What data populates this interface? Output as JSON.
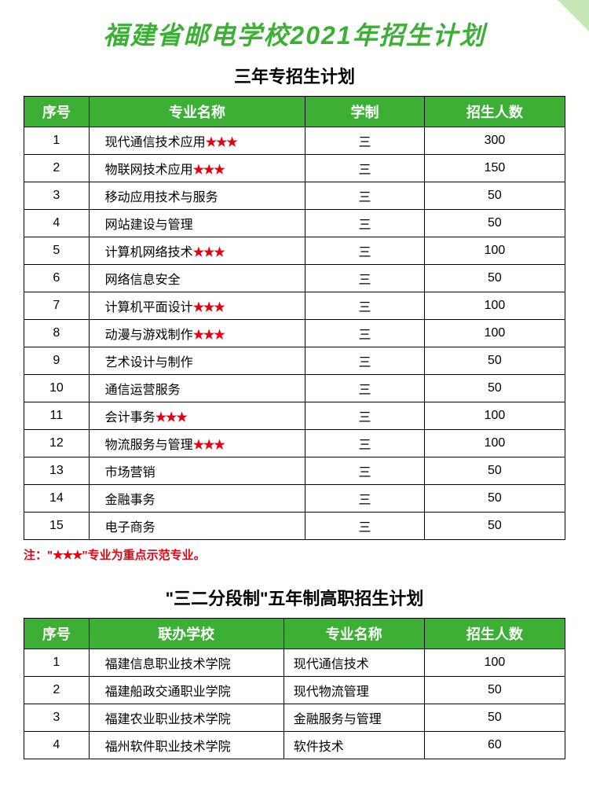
{
  "colors": {
    "title_color": "#3cb034",
    "header_bg": "#3cb034",
    "star_color": "#e60012",
    "note_color": "#e60012",
    "border_color": "#000000",
    "bg_color": "#ffffff"
  },
  "main_title": "福建省邮电学校2021年招生计划",
  "section1": {
    "title": "三年专招生计划",
    "headers": [
      "序号",
      "专业名称",
      "学制",
      "招生人数"
    ],
    "rows": [
      {
        "idx": "1",
        "name": "现代通信技术应用",
        "star": true,
        "sys": "三",
        "num": "300"
      },
      {
        "idx": "2",
        "name": "物联网技术应用",
        "star": true,
        "sys": "三",
        "num": "150"
      },
      {
        "idx": "3",
        "name": "移动应用技术与服务",
        "star": false,
        "sys": "三",
        "num": "50"
      },
      {
        "idx": "4",
        "name": "网站建设与管理",
        "star": false,
        "sys": "三",
        "num": "50"
      },
      {
        "idx": "5",
        "name": "计算机网络技术",
        "star": true,
        "sys": "三",
        "num": "100"
      },
      {
        "idx": "6",
        "name": "网络信息安全",
        "star": false,
        "sys": "三",
        "num": "50"
      },
      {
        "idx": "7",
        "name": "计算机平面设计",
        "star": true,
        "sys": "三",
        "num": "100"
      },
      {
        "idx": "8",
        "name": "动漫与游戏制作",
        "star": true,
        "sys": "三",
        "num": "100"
      },
      {
        "idx": "9",
        "name": "艺术设计与制作",
        "star": false,
        "sys": "三",
        "num": "50"
      },
      {
        "idx": "10",
        "name": "通信运营服务",
        "star": false,
        "sys": "三",
        "num": "50"
      },
      {
        "idx": "11",
        "name": "会计事务",
        "star": true,
        "sys": "三",
        "num": "100"
      },
      {
        "idx": "12",
        "name": "物流服务与管理",
        "star": true,
        "sys": "三",
        "num": "100"
      },
      {
        "idx": "13",
        "name": "市场营销",
        "star": false,
        "sys": "三",
        "num": "50"
      },
      {
        "idx": "14",
        "name": "金融事务",
        "star": false,
        "sys": "三",
        "num": "50"
      },
      {
        "idx": "15",
        "name": "电子商务",
        "star": false,
        "sys": "三",
        "num": "50"
      }
    ]
  },
  "note_prefix": "注：\"",
  "note_stars": "★★★",
  "note_suffix": "\"专业为重点示范专业。",
  "section2": {
    "title": "\"三二分段制\"五年制高职招生计划",
    "headers": [
      "序号",
      "联办学校",
      "专业名称",
      "招生人数"
    ],
    "rows": [
      {
        "idx": "1",
        "school": "福建信息职业技术学院",
        "major": "现代通信技术",
        "num": "100"
      },
      {
        "idx": "2",
        "school": "福建船政交通职业学院",
        "major": "现代物流管理",
        "num": "50"
      },
      {
        "idx": "3",
        "school": "福建农业职业技术学院",
        "major": "金融服务与管理",
        "num": "50"
      },
      {
        "idx": "4",
        "school": "福州软件职业技术学院",
        "major": "软件技术",
        "num": "60"
      }
    ]
  },
  "star_glyph": "★★★"
}
